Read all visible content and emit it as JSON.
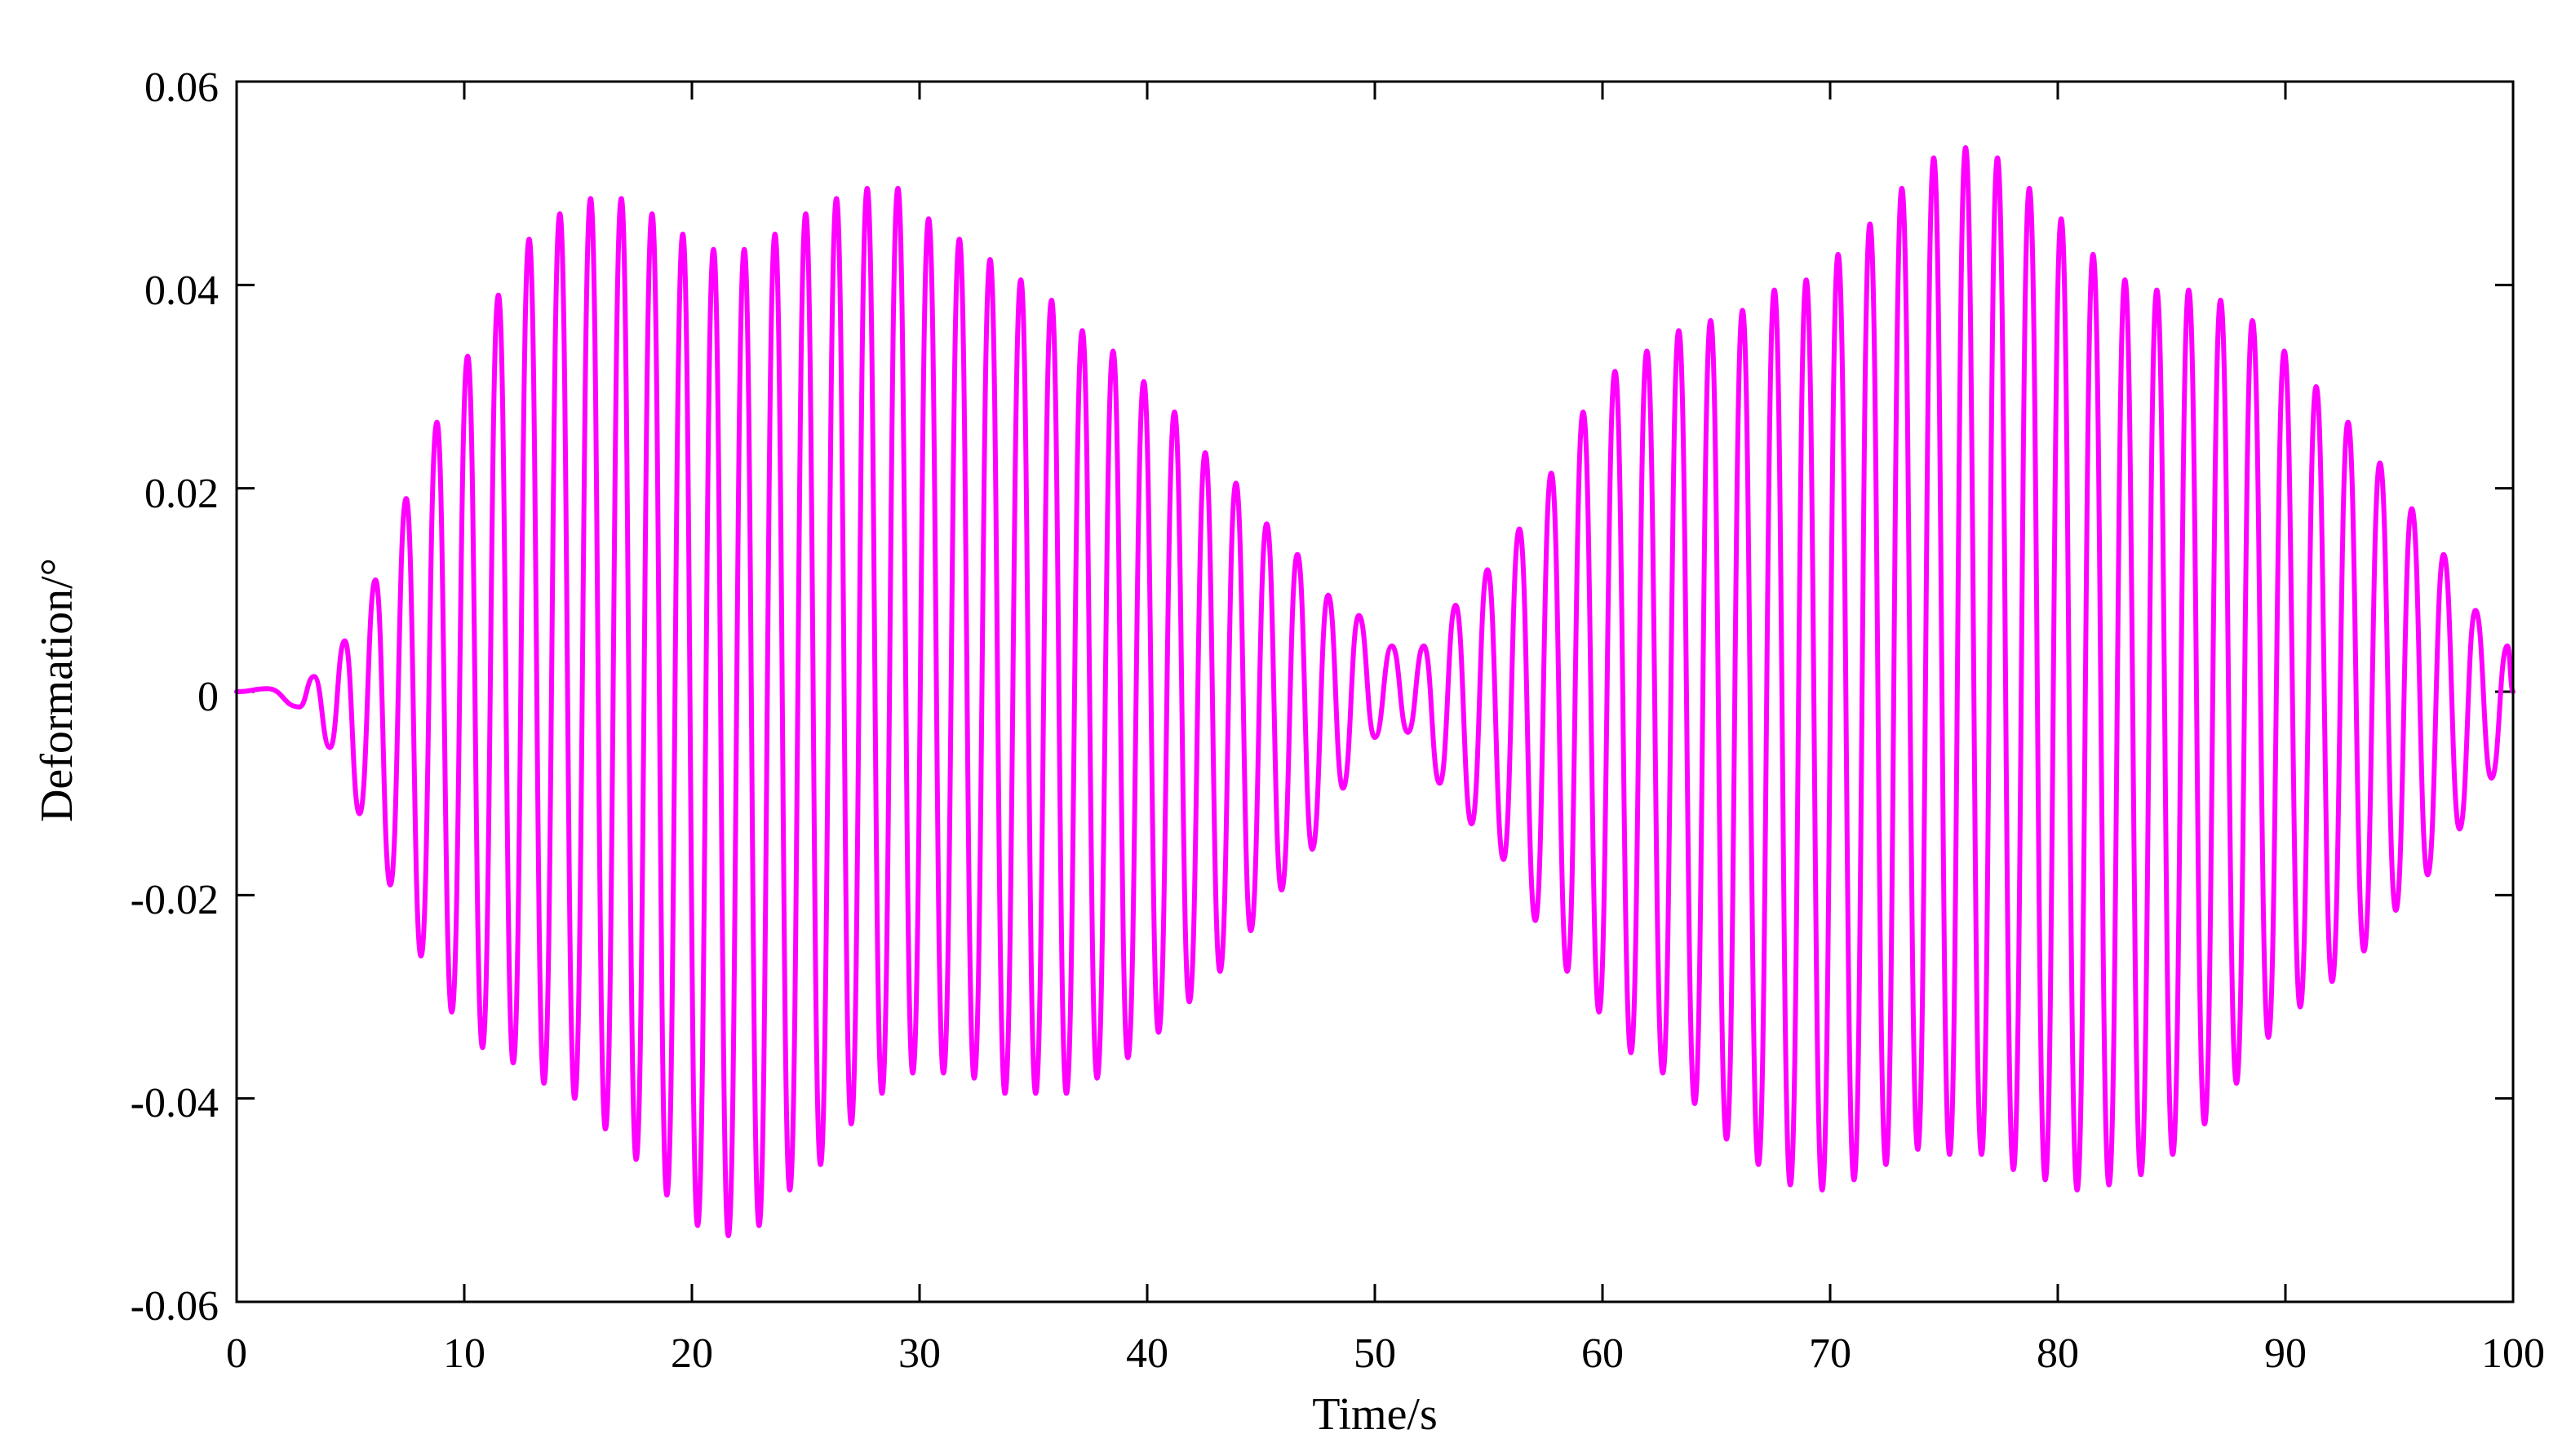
{
  "chart_data": {
    "type": "line",
    "title": "",
    "xlabel": "Time/s",
    "ylabel": "Deformation/°",
    "xlim": [
      0,
      100
    ],
    "ylim": [
      -0.06,
      0.06
    ],
    "x_ticks": [
      "0",
      "10",
      "20",
      "30",
      "40",
      "50",
      "60",
      "70",
      "80",
      "90",
      "100"
    ],
    "y_ticks": [
      "0.06",
      "0.04",
      "0.02",
      "0",
      "-0.02",
      "-0.04",
      "-0.06"
    ],
    "grid": false,
    "legend": "none",
    "series": [
      {
        "color": "#ff00ff",
        "x": [
          0,
          1.35,
          2.75,
          3.4,
          4.1,
          4.75,
          5.4,
          6.1,
          6.75,
          7.45,
          8.1,
          8.8,
          9.45,
          10.15,
          10.8,
          11.5,
          12.15,
          12.85,
          13.5,
          14.2,
          14.85,
          15.55,
          16.2,
          16.9,
          17.55,
          18.25,
          18.9,
          19.6,
          20.25,
          20.95,
          21.6,
          22.3,
          22.95,
          23.65,
          24.3,
          25.0,
          25.65,
          26.35,
          27.0,
          27.7,
          28.35,
          29.05,
          29.7,
          30.4,
          31.05,
          31.75,
          32.4,
          33.1,
          33.75,
          34.45,
          35.1,
          35.8,
          36.45,
          37.15,
          37.8,
          38.5,
          39.15,
          39.85,
          40.5,
          41.2,
          41.85,
          42.55,
          43.2,
          43.9,
          44.55,
          45.25,
          45.9,
          46.6,
          47.25,
          47.95,
          48.6,
          49.3,
          50.0,
          50.75,
          51.45,
          52.15,
          52.85,
          53.55,
          54.25,
          54.95,
          55.65,
          56.35,
          57.05,
          57.75,
          58.45,
          59.15,
          59.85,
          60.55,
          61.25,
          61.95,
          62.65,
          63.35,
          64.05,
          64.75,
          65.45,
          66.15,
          66.85,
          67.55,
          68.25,
          68.95,
          69.65,
          70.35,
          71.05,
          71.75,
          72.45,
          73.15,
          73.85,
          74.55,
          75.25,
          75.95,
          76.65,
          77.35,
          78.05,
          78.75,
          79.45,
          80.15,
          80.85,
          81.55,
          82.25,
          82.95,
          83.65,
          84.35,
          85.05,
          85.75,
          86.45,
          87.15,
          87.85,
          88.55,
          89.25,
          89.95,
          90.65,
          91.35,
          92.05,
          92.75,
          93.45,
          94.15,
          94.85,
          95.55,
          96.25,
          96.95,
          97.65,
          98.35,
          99.05,
          99.75,
          100
        ],
        "y": [
          0,
          0.0003,
          -0.0015,
          0.0015,
          -0.0055,
          0.005,
          -0.012,
          0.011,
          -0.019,
          0.019,
          -0.026,
          0.0265,
          -0.0315,
          0.033,
          -0.035,
          0.039,
          -0.0365,
          0.0445,
          -0.0385,
          0.047,
          -0.04,
          0.0485,
          -0.043,
          0.0485,
          -0.046,
          0.047,
          -0.0495,
          0.045,
          -0.0525,
          0.0435,
          -0.0535,
          0.0435,
          -0.0525,
          0.045,
          -0.049,
          0.047,
          -0.0465,
          0.0485,
          -0.0425,
          0.0495,
          -0.0395,
          0.0495,
          -0.0375,
          0.0465,
          -0.0375,
          0.0445,
          -0.038,
          0.0425,
          -0.0395,
          0.0405,
          -0.0395,
          0.0385,
          -0.0395,
          0.0355,
          -0.038,
          0.0335,
          -0.036,
          0.0305,
          -0.0335,
          0.0275,
          -0.0305,
          0.0235,
          -0.0275,
          0.0205,
          -0.0235,
          0.0165,
          -0.0195,
          0.0135,
          -0.0155,
          0.0095,
          -0.0095,
          0.0075,
          -0.0045,
          0.0045,
          -0.004,
          0.0045,
          -0.009,
          0.0085,
          -0.013,
          0.012,
          -0.0165,
          0.016,
          -0.0225,
          0.0215,
          -0.0275,
          0.0275,
          -0.0315,
          0.0315,
          -0.0355,
          0.0335,
          -0.0375,
          0.0355,
          -0.0405,
          0.0365,
          -0.044,
          0.0375,
          -0.0465,
          0.0395,
          -0.0485,
          0.0405,
          -0.049,
          0.043,
          -0.048,
          0.046,
          -0.0465,
          0.0495,
          -0.045,
          0.0525,
          -0.0455,
          0.0535,
          -0.0455,
          0.0525,
          -0.047,
          0.0495,
          -0.048,
          0.0465,
          -0.049,
          0.043,
          -0.0485,
          0.0405,
          -0.0475,
          0.0395,
          -0.0455,
          0.0395,
          -0.0425,
          0.0385,
          -0.0385,
          0.0365,
          -0.034,
          0.0335,
          -0.031,
          0.03,
          -0.0285,
          0.0265,
          -0.0255,
          0.0225,
          -0.0215,
          0.018,
          -0.018,
          0.0135,
          -0.0135,
          0.008,
          -0.0085,
          0.0045,
          0
        ]
      }
    ]
  }
}
